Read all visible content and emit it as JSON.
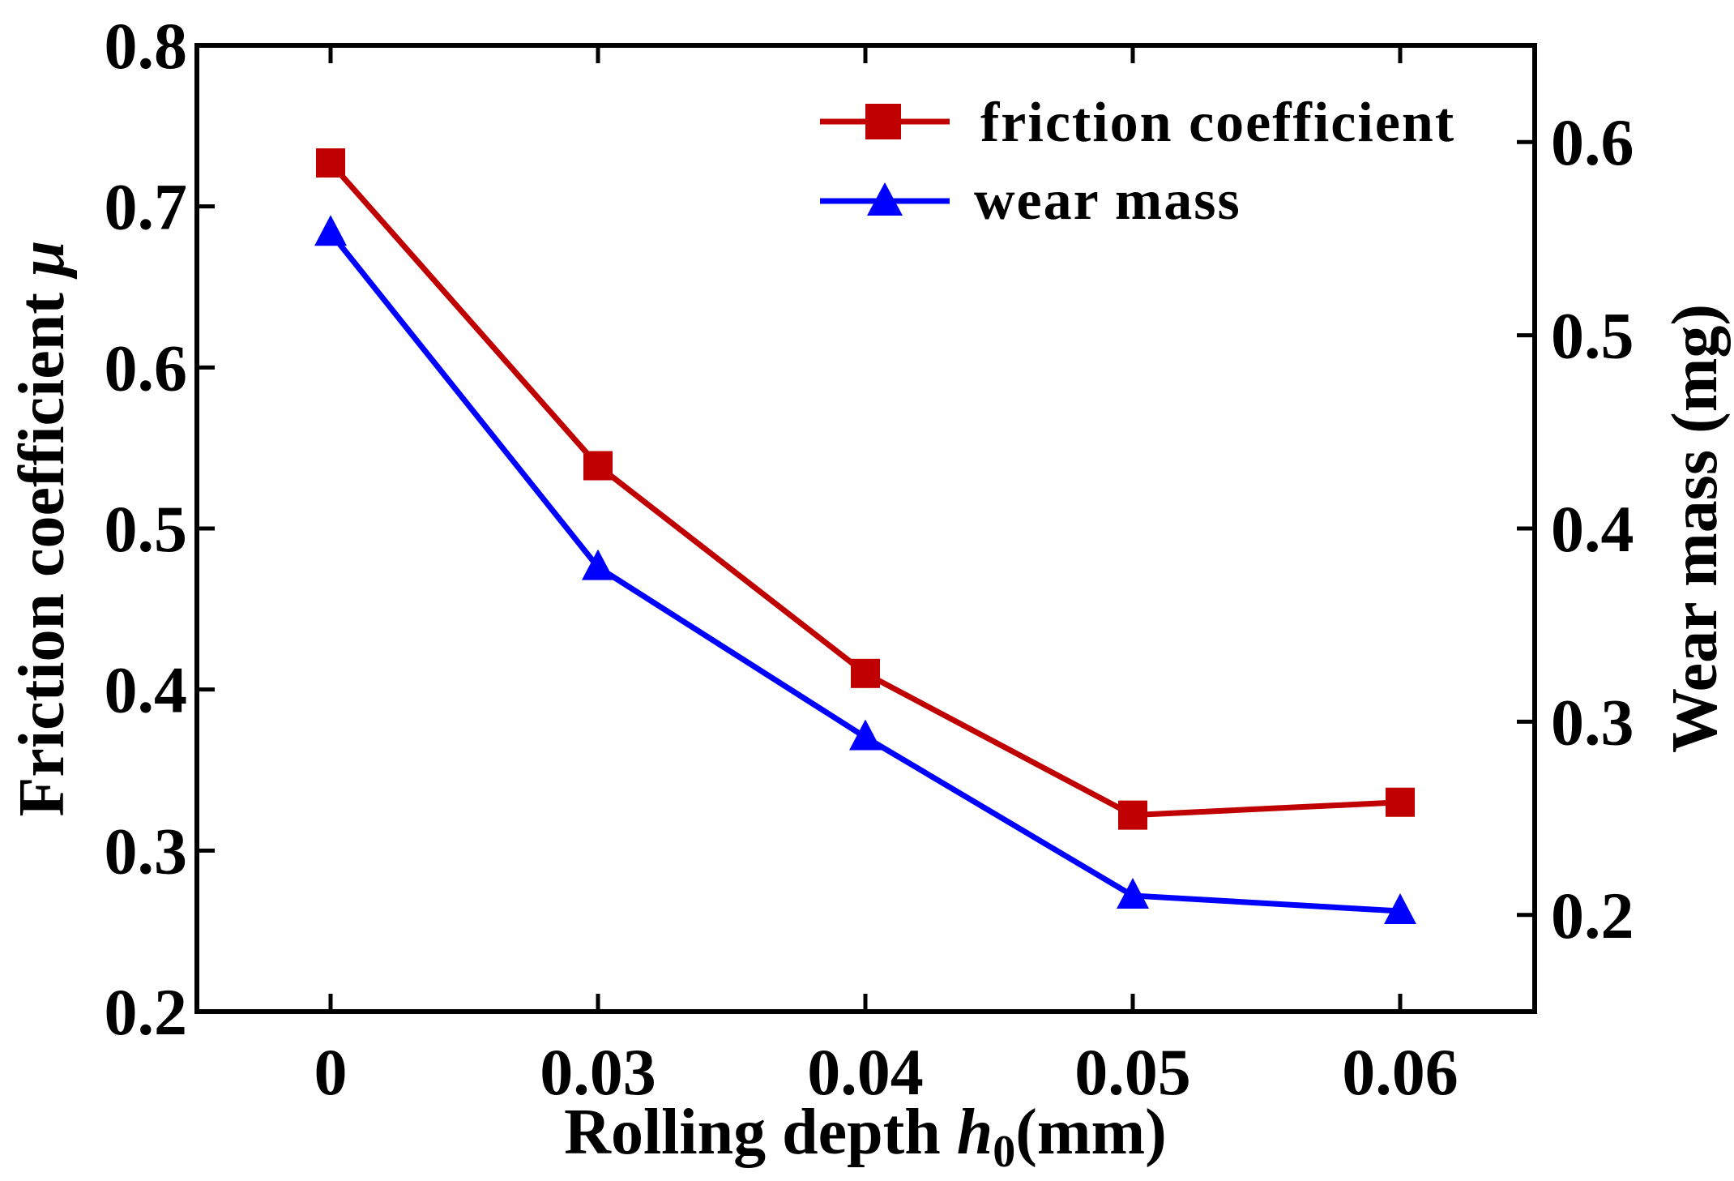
{
  "chart_data": {
    "type": "line",
    "categories": [
      "0",
      "0.03",
      "0.04",
      "0.05",
      "0.06"
    ],
    "xlabel": {
      "prefix": "Rolling depth ",
      "symbol": "h",
      "subscript": "0",
      "suffix": "(mm)"
    },
    "ylabel_left": {
      "text": "Friction coefficient ",
      "symbol": "μ"
    },
    "ylabel_right": "Wear mass (mg)",
    "ylim_left": [
      0.2,
      0.8
    ],
    "yticks_left": [
      0.2,
      0.3,
      0.4,
      0.5,
      0.6,
      0.7,
      0.8
    ],
    "ytick_labels_left": [
      "0.2",
      "0.3",
      "0.4",
      "0.5",
      "0.6",
      "0.7",
      "0.8"
    ],
    "ylim_right": [
      0.15,
      0.65
    ],
    "yticks_right": [
      0.2,
      0.3,
      0.4,
      0.5,
      0.6
    ],
    "ytick_labels_right": [
      "0.2",
      "0.3",
      "0.4",
      "0.5",
      "0.6"
    ],
    "grid": false,
    "legend_position": "top-right",
    "series": [
      {
        "name": "friction coefficient",
        "axis": "left",
        "marker": "square",
        "color": "#c00000",
        "values": [
          0.727,
          0.539,
          0.41,
          0.322,
          0.33
        ]
      },
      {
        "name": "wear mass",
        "axis": "right",
        "marker": "triangle",
        "color": "#0000ff",
        "values": [
          0.553,
          0.38,
          0.292,
          0.21,
          0.202
        ]
      }
    ]
  }
}
